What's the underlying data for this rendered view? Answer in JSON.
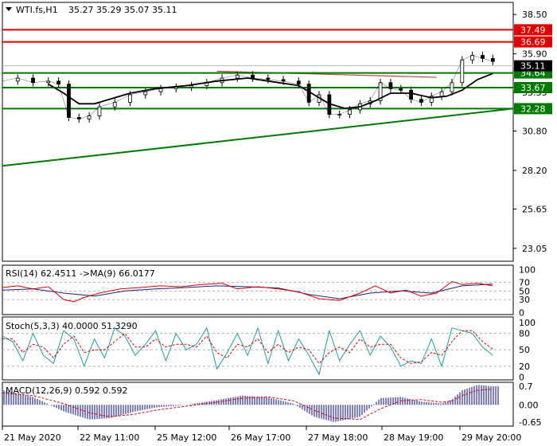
{
  "symbol": "WTI.fs,H1",
  "ohlc": [
    "35.27",
    "35.29",
    "35.07",
    "35.11"
  ],
  "colors": {
    "resistance": "#e00000",
    "support": "#007a00",
    "trend": "#007a00",
    "trend_upper": "#c04040",
    "candle": "#000000",
    "ma": "#000000",
    "rsi": "#e00000",
    "rsi_ma": "#1a237e",
    "stoch_main": "#19a0a8",
    "stoch_signal": "#e00000",
    "macd_hist": "#00008b",
    "macd_signal": "#e00000",
    "grid": "#b0b0b0"
  },
  "chart_data": [
    {
      "type": "line",
      "title": "WTI.fs,H1",
      "subtitle": "35.27 35.29 35.07 35.11",
      "x_ticks": [
        "21 May 2020",
        "22 May 11:00",
        "25 May 12:00",
        "26 May 17:00",
        "27 May 18:00",
        "28 May 19:00",
        "29 May 20:00"
      ],
      "y_ticks": [
        "38.50",
        "35.90",
        "33.35",
        "30.80",
        "28.20",
        "25.65",
        "23.05"
      ],
      "ylim": [
        22.2,
        39.3
      ],
      "last_price": "35.11",
      "levels": [
        {
          "label": "37.49",
          "value": 37.49,
          "kind": "resistance"
        },
        {
          "label": "36.69",
          "value": 36.69,
          "kind": "resistance"
        },
        {
          "label": "34.64",
          "value": 34.64,
          "kind": "support"
        },
        {
          "label": "33.67",
          "value": 33.67,
          "kind": "support"
        },
        {
          "label": "32.28",
          "value": 32.28,
          "kind": "support"
        }
      ],
      "trendlines": [
        {
          "kind": "support",
          "x": [
            0,
            1
          ],
          "y": [
            28.5,
            32.28
          ]
        },
        {
          "kind": "resistance",
          "x": [
            0.42,
            0.85
          ],
          "y": [
            34.75,
            34.35
          ]
        }
      ],
      "close_series": {
        "x": [
          0,
          0.03,
          0.06,
          0.09,
          0.11,
          0.13,
          0.15,
          0.17,
          0.19,
          0.22,
          0.25,
          0.28,
          0.31,
          0.34,
          0.37,
          0.4,
          0.43,
          0.46,
          0.49,
          0.52,
          0.55,
          0.58,
          0.6,
          0.62,
          0.64,
          0.66,
          0.68,
          0.7,
          0.72,
          0.74,
          0.76,
          0.78,
          0.8,
          0.82,
          0.84,
          0.86,
          0.88,
          0.9,
          0.92,
          0.94,
          0.96
        ],
        "y": [
          34.1,
          34.3,
          34.0,
          34.1,
          33.9,
          31.7,
          31.6,
          31.8,
          32.4,
          32.7,
          33.2,
          33.4,
          33.6,
          33.7,
          33.8,
          34.0,
          34.3,
          34.5,
          34.3,
          34.2,
          34.1,
          33.9,
          32.7,
          33.2,
          31.9,
          31.9,
          32.2,
          32.6,
          32.8,
          34.0,
          33.6,
          33.5,
          32.9,
          32.7,
          33.1,
          33.4,
          34.0,
          35.5,
          35.8,
          35.6,
          35.4
        ]
      },
      "ma_series": {
        "x": [
          0.09,
          0.12,
          0.15,
          0.18,
          0.21,
          0.25,
          0.3,
          0.36,
          0.42,
          0.48,
          0.54,
          0.58,
          0.61,
          0.64,
          0.67,
          0.7,
          0.73,
          0.76,
          0.8,
          0.84,
          0.87,
          0.9,
          0.93,
          0.96
        ],
        "y": [
          33.9,
          33.3,
          32.6,
          32.6,
          32.9,
          33.3,
          33.6,
          33.8,
          34.1,
          34.3,
          34.0,
          33.8,
          33.2,
          32.6,
          32.3,
          32.4,
          32.8,
          33.3,
          33.3,
          33.0,
          33.1,
          33.5,
          34.2,
          34.6
        ]
      }
    },
    {
      "type": "line",
      "title": "RSI(14) 62.4511 ->MA(9) 66.0177",
      "y_ticks": [
        "100",
        "70",
        "50",
        "30",
        "0"
      ],
      "ylim": [
        -5,
        110
      ],
      "series": [
        {
          "name": "RSI(14)",
          "x": [
            0,
            0.03,
            0.06,
            0.09,
            0.12,
            0.14,
            0.16,
            0.19,
            0.23,
            0.27,
            0.31,
            0.35,
            0.39,
            0.43,
            0.46,
            0.5,
            0.54,
            0.58,
            0.62,
            0.66,
            0.7,
            0.73,
            0.76,
            0.79,
            0.82,
            0.85,
            0.88,
            0.9,
            0.93,
            0.96
          ],
          "y": [
            58,
            62,
            55,
            60,
            30,
            25,
            35,
            45,
            55,
            58,
            62,
            60,
            65,
            68,
            55,
            60,
            55,
            48,
            32,
            28,
            45,
            62,
            45,
            52,
            38,
            45,
            72,
            65,
            68,
            62
          ]
        },
        {
          "name": "MA(9)",
          "x": [
            0,
            0.06,
            0.12,
            0.18,
            0.24,
            0.3,
            0.36,
            0.42,
            0.48,
            0.54,
            0.6,
            0.66,
            0.72,
            0.78,
            0.84,
            0.9,
            0.96
          ],
          "y": [
            52,
            55,
            45,
            38,
            50,
            55,
            58,
            62,
            60,
            57,
            42,
            32,
            45,
            50,
            45,
            62,
            66
          ]
        }
      ]
    },
    {
      "type": "line",
      "title": "Stoch(5,3,3) 40.0000 51.3290",
      "y_ticks": [
        "100",
        "80",
        "50",
        "20",
        "0"
      ],
      "ylim": [
        -5,
        110
      ],
      "series": [
        {
          "name": "Stoch(5,3,3)",
          "x": [
            0,
            0.02,
            0.04,
            0.06,
            0.08,
            0.1,
            0.12,
            0.14,
            0.16,
            0.18,
            0.2,
            0.22,
            0.24,
            0.26,
            0.28,
            0.3,
            0.32,
            0.34,
            0.36,
            0.38,
            0.4,
            0.42,
            0.44,
            0.46,
            0.48,
            0.5,
            0.52,
            0.54,
            0.56,
            0.58,
            0.6,
            0.62,
            0.64,
            0.66,
            0.68,
            0.7,
            0.72,
            0.74,
            0.76,
            0.78,
            0.8,
            0.82,
            0.84,
            0.86,
            0.88,
            0.9,
            0.92,
            0.94,
            0.96
          ],
          "y": [
            75,
            65,
            30,
            80,
            40,
            25,
            85,
            70,
            20,
            70,
            35,
            90,
            75,
            40,
            60,
            85,
            30,
            80,
            50,
            60,
            90,
            15,
            45,
            80,
            40,
            90,
            25,
            85,
            30,
            70,
            40,
            5,
            85,
            30,
            60,
            85,
            40,
            75,
            55,
            20,
            30,
            25,
            70,
            20,
            90,
            85,
            80,
            55,
            40
          ]
        },
        {
          "name": "signal",
          "x": [
            0,
            0.02,
            0.04,
            0.06,
            0.08,
            0.1,
            0.12,
            0.14,
            0.16,
            0.18,
            0.2,
            0.22,
            0.24,
            0.26,
            0.28,
            0.3,
            0.32,
            0.34,
            0.36,
            0.38,
            0.4,
            0.42,
            0.44,
            0.46,
            0.48,
            0.5,
            0.52,
            0.54,
            0.56,
            0.58,
            0.6,
            0.62,
            0.64,
            0.66,
            0.68,
            0.7,
            0.72,
            0.74,
            0.76,
            0.78,
            0.8,
            0.82,
            0.84,
            0.86,
            0.88,
            0.9,
            0.92,
            0.94,
            0.96
          ],
          "y": [
            70,
            70,
            45,
            60,
            55,
            35,
            60,
            75,
            45,
            50,
            50,
            65,
            80,
            55,
            55,
            70,
            55,
            60,
            60,
            55,
            75,
            45,
            35,
            60,
            55,
            70,
            45,
            60,
            45,
            55,
            50,
            25,
            45,
            55,
            45,
            70,
            55,
            60,
            60,
            35,
            25,
            28,
            45,
            40,
            65,
            85,
            85,
            65,
            51
          ]
        }
      ]
    },
    {
      "type": "bar",
      "title": "MACD(12,26,9) 0.592 0.592",
      "y_ticks": [
        "0.7",
        "0.00",
        "-0.65"
      ],
      "ylim": [
        -0.8,
        0.85
      ],
      "histogram": {
        "x": [
          0,
          0.06,
          0.12,
          0.17,
          0.21,
          0.26,
          0.3,
          0.36,
          0.42,
          0.47,
          0.52,
          0.57,
          0.61,
          0.65,
          0.7,
          0.74,
          0.78,
          0.82,
          0.86,
          0.88,
          0.9,
          0.93,
          0.96
        ],
        "y": [
          0.55,
          0.3,
          -0.25,
          -0.55,
          -0.5,
          -0.25,
          -0.1,
          0.0,
          0.18,
          0.35,
          0.28,
          0.05,
          -0.45,
          -0.65,
          -0.45,
          0.25,
          0.3,
          0.12,
          0.05,
          0.2,
          0.55,
          0.75,
          0.7
        ]
      },
      "signal": {
        "x": [
          0,
          0.06,
          0.12,
          0.17,
          0.21,
          0.26,
          0.3,
          0.36,
          0.42,
          0.47,
          0.52,
          0.57,
          0.61,
          0.65,
          0.7,
          0.74,
          0.78,
          0.82,
          0.86,
          0.88,
          0.9,
          0.93,
          0.96
        ],
        "y": [
          0.45,
          0.35,
          0.05,
          -0.3,
          -0.45,
          -0.35,
          -0.2,
          -0.05,
          0.1,
          0.25,
          0.3,
          0.15,
          -0.2,
          -0.5,
          -0.55,
          -0.15,
          0.15,
          0.2,
          0.1,
          0.15,
          0.35,
          0.55,
          0.59
        ]
      }
    }
  ]
}
